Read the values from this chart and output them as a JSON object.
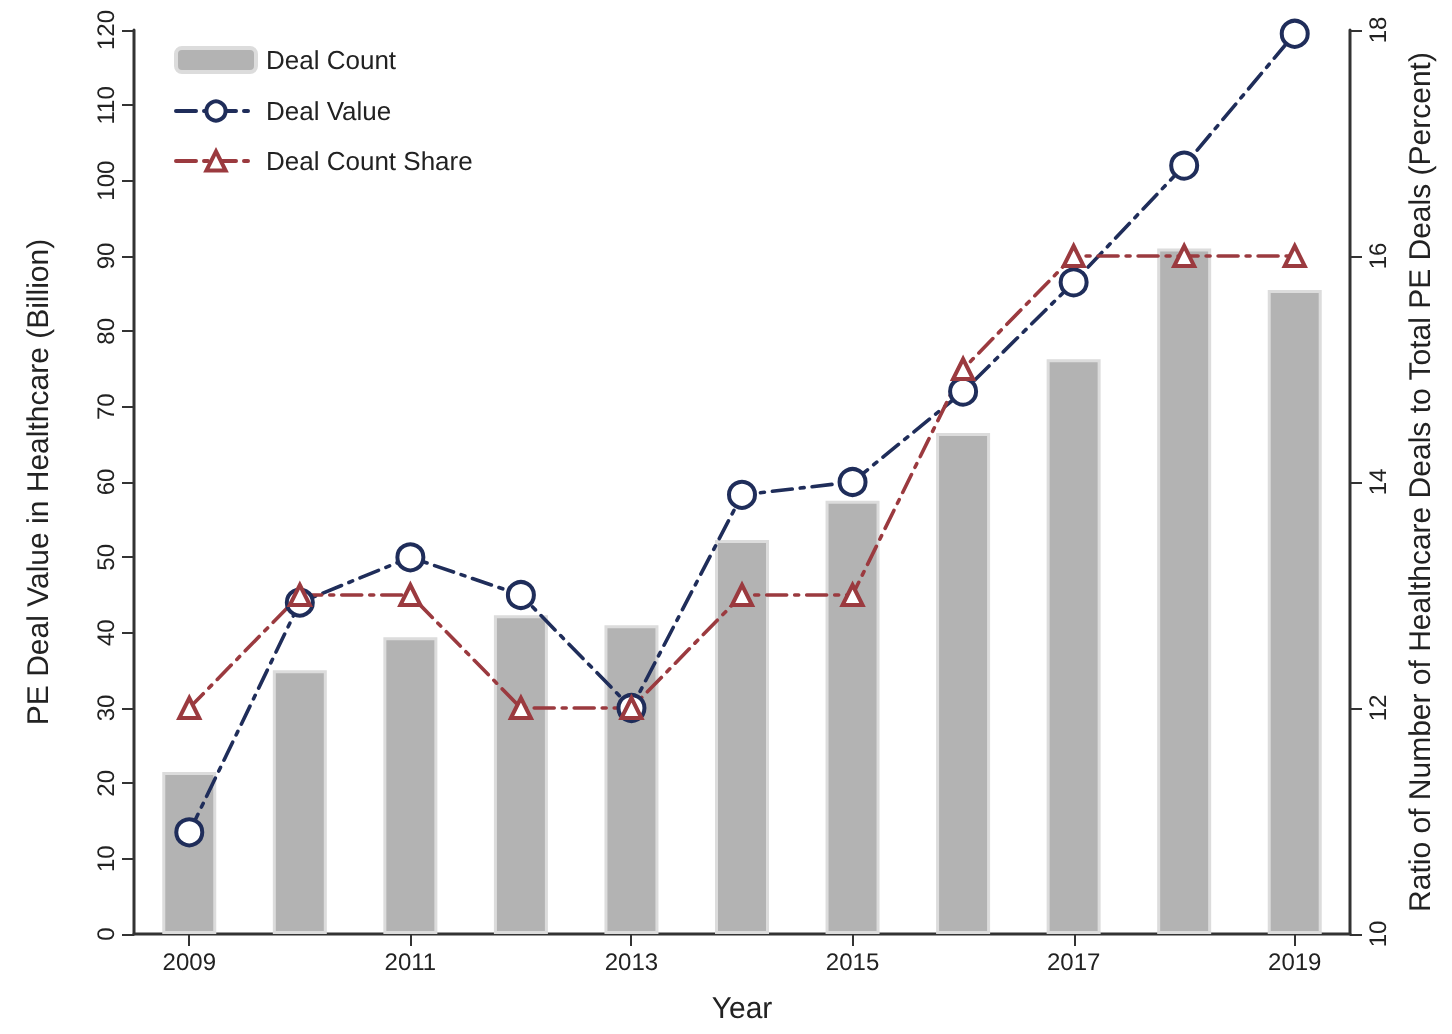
{
  "chart_data": {
    "type": "bar",
    "xlabel": "Year",
    "ylabel": "PE Deal Value in Healthcare (Billion)",
    "y2label": "Ratio of Number of Healthcare Deals to Total PE Deals (Percent)",
    "x": [
      2009,
      2010,
      2011,
      2012,
      2013,
      2014,
      2015,
      2016,
      2017,
      2018,
      2019
    ],
    "series": [
      {
        "name": "Deal Count",
        "color": "#b3b3b3",
        "values": [
          21.5,
          35,
          39.4,
          42.3,
          41,
          52.3,
          57.5,
          66.5,
          76.3,
          91,
          85.5
        ]
      },
      {
        "name": "Deal Value",
        "type": "line",
        "color": "#1f2d5a",
        "marker": "circle",
        "line_style": "dashed",
        "values": [
          13.5,
          44,
          50,
          45,
          30,
          58.3,
          60,
          72,
          86.5,
          102,
          119.5
        ]
      },
      {
        "name": "Deal Count Share",
        "type": "line",
        "axis": "y2",
        "color": "#9b3a3f",
        "marker": "triangle",
        "line_style": "dashed",
        "values": [
          12,
          13,
          13,
          12,
          12,
          13,
          13,
          15,
          16,
          16,
          16
        ]
      }
    ],
    "xlim": [
      2008.5,
      2019.5
    ],
    "xticks": [
      2009,
      2011,
      2013,
      2015,
      2017,
      2019
    ],
    "ylim": [
      0,
      120
    ],
    "yticks": [
      0,
      10,
      20,
      30,
      40,
      50,
      60,
      70,
      80,
      90,
      100,
      110,
      120
    ],
    "y2lim": [
      10,
      18
    ],
    "y2ticks": [
      10,
      12,
      14,
      16,
      18
    ],
    "grid": false,
    "legend": "top left"
  }
}
